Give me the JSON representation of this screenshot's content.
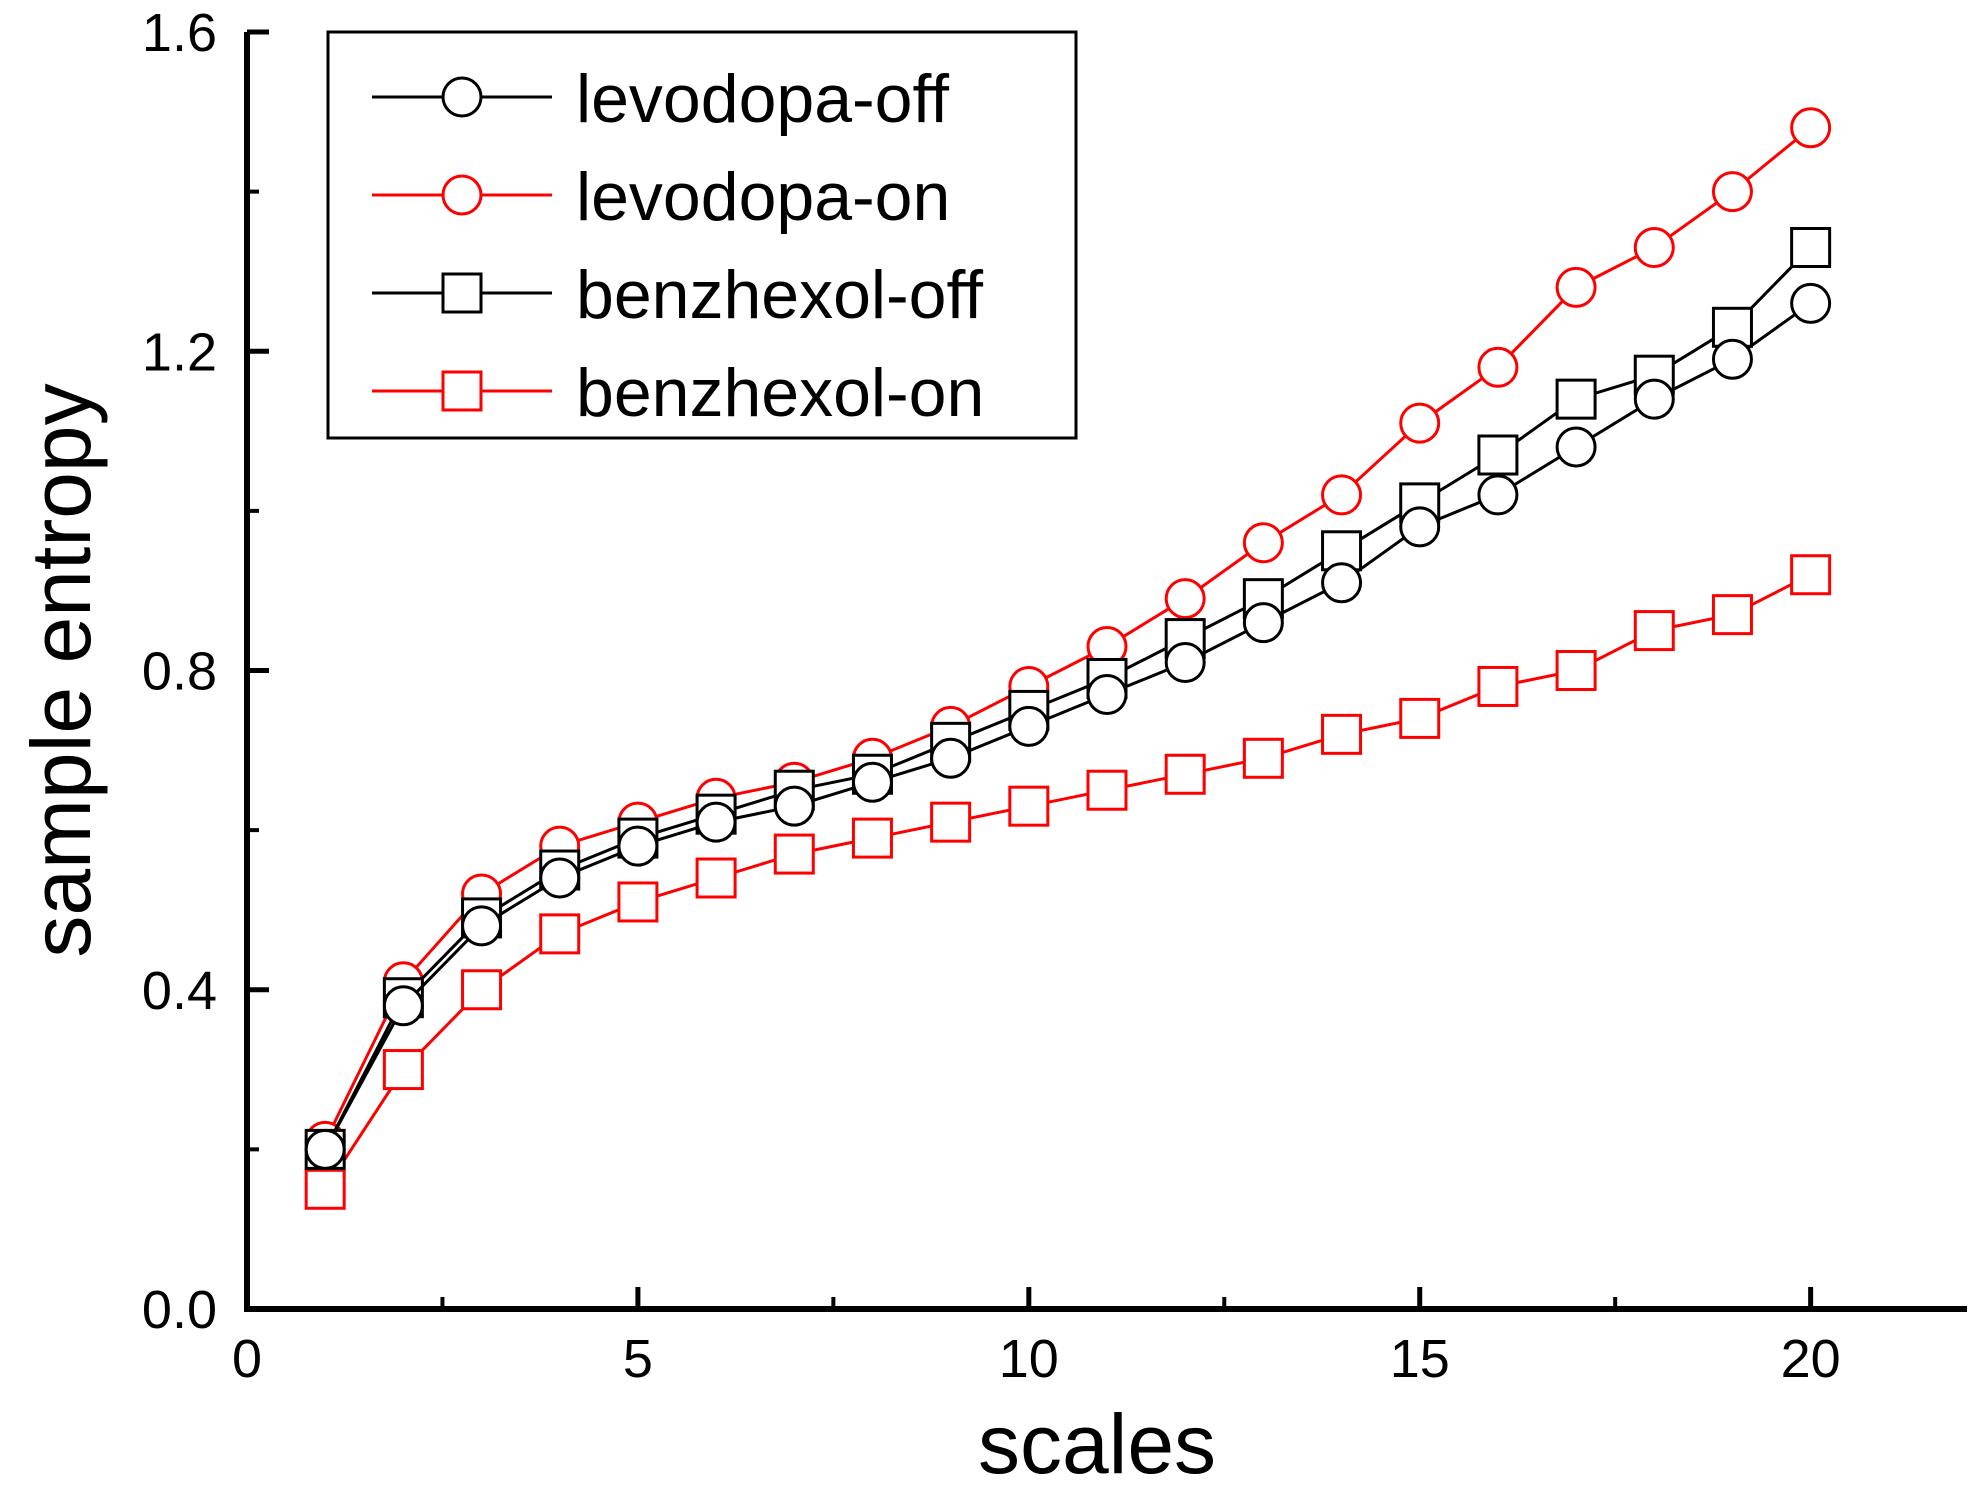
{
  "chart_data": {
    "type": "line",
    "xlabel": "scales",
    "ylabel": "sample entropy",
    "xlim": [
      0,
      22
    ],
    "ylim": [
      0.0,
      1.6
    ],
    "xticks": [
      0,
      5,
      10,
      15,
      20
    ],
    "xtick_labels": [
      "0",
      "5",
      "10",
      "15",
      "20"
    ],
    "yticks": [
      0.0,
      0.4,
      0.8,
      1.2,
      1.6
    ],
    "ytick_labels": [
      "0.0",
      "0.4",
      "0.8",
      "1.2",
      "1.6"
    ],
    "grid": false,
    "legend_position": "top-left",
    "x": [
      1,
      2,
      3,
      4,
      5,
      6,
      7,
      8,
      9,
      10,
      11,
      12,
      13,
      14,
      15,
      16,
      17,
      18,
      19,
      20
    ],
    "series": [
      {
        "name": "levodopa-off",
        "color": "#000000",
        "marker": "circle",
        "values": [
          0.2,
          0.38,
          0.48,
          0.54,
          0.58,
          0.61,
          0.63,
          0.66,
          0.69,
          0.73,
          0.77,
          0.81,
          0.86,
          0.91,
          0.98,
          1.02,
          1.08,
          1.14,
          1.19,
          1.26
        ]
      },
      {
        "name": "levodopa-on",
        "color": "#ff0000",
        "marker": "circle",
        "values": [
          0.21,
          0.41,
          0.52,
          0.58,
          0.61,
          0.64,
          0.66,
          0.69,
          0.73,
          0.78,
          0.83,
          0.89,
          0.96,
          1.02,
          1.11,
          1.18,
          1.28,
          1.33,
          1.4,
          1.48
        ]
      },
      {
        "name": "benzhexol-off",
        "color": "#000000",
        "marker": "square",
        "values": [
          0.2,
          0.39,
          0.49,
          0.55,
          0.59,
          0.62,
          0.65,
          0.67,
          0.71,
          0.75,
          0.79,
          0.84,
          0.89,
          0.95,
          1.01,
          1.07,
          1.14,
          1.17,
          1.23,
          1.33
        ]
      },
      {
        "name": "benzhexol-on",
        "color": "#ff0000",
        "marker": "square",
        "values": [
          0.15,
          0.3,
          0.4,
          0.47,
          0.51,
          0.54,
          0.57,
          0.59,
          0.61,
          0.63,
          0.65,
          0.67,
          0.69,
          0.72,
          0.74,
          0.78,
          0.8,
          0.85,
          0.87,
          0.92
        ]
      }
    ]
  }
}
